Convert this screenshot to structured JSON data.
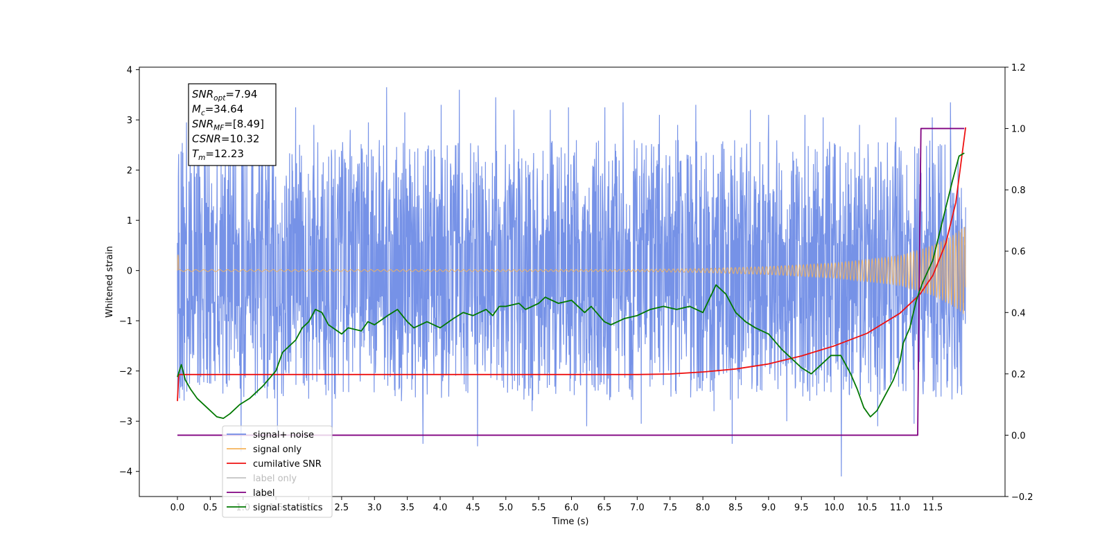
{
  "chart_data": {
    "type": "line",
    "xlabel": "Time (s)",
    "ylabel": "Whitened strain",
    "xlim": [
      -0.58,
      12.6
    ],
    "ylim": [
      -4.5,
      4.05
    ],
    "y2lim": [
      -0.2,
      1.2
    ],
    "x_ticks": [
      "0.0",
      "0.5",
      "1.0",
      "1.5",
      "2.0",
      "2.5",
      "3.0",
      "3.5",
      "4.0",
      "4.5",
      "5.0",
      "5.5",
      "6.0",
      "6.5",
      "7.0",
      "7.5",
      "8.0",
      "8.5",
      "9.0",
      "9.5",
      "10.0",
      "10.5",
      "11.0",
      "11.5"
    ],
    "y_ticks": [
      "4",
      "3",
      "2",
      "1",
      "0",
      "−1",
      "−2",
      "−3",
      "−4"
    ],
    "y2_ticks": [
      "1.2",
      "1.0",
      "0.8",
      "0.6",
      "0.4",
      "0.2",
      "0.0",
      "−0.2"
    ],
    "annotation": [
      {
        "name": "SNR",
        "sub": "opt",
        "value": "=7.94"
      },
      {
        "name": "M",
        "sub": "c",
        "value": "=34.64"
      },
      {
        "name": "SNR",
        "sub": "MF",
        "value": "=[8.49]"
      },
      {
        "name": "CSNR",
        "sub": "",
        "value": "=10.32"
      },
      {
        "name": "T",
        "sub": "m",
        "value": "=12.23"
      }
    ],
    "legend_position": "lower-left",
    "series": [
      {
        "name": "signal+ noise",
        "axis": "left",
        "color": "#6f8ce6",
        "x_range": [
          0,
          12.0
        ],
        "y_range": [
          -4.1,
          3.65
        ],
        "values": [
          2.95,
          3.1,
          -2.45,
          -3.6,
          2.6,
          -3.2,
          3.25,
          2.9,
          -3.35,
          2.8,
          2.95,
          3.65,
          3.15,
          -3.45,
          3.3,
          3.6,
          -3.5,
          3.45,
          3.2,
          -2.8,
          3.2,
          3.25,
          -3.1,
          3.25,
          3.35,
          -3.05,
          3.1,
          2.9,
          3.3,
          -2.8,
          -3.45,
          3.2,
          3.1,
          -3.0,
          3.1,
          3.05,
          -4.1,
          2.9,
          -3.1,
          3.05,
          -3.05,
          3.05,
          3.35
        ]
      },
      {
        "name": "signal only",
        "axis": "left",
        "color": "#f5b35a",
        "x": [
          0.0,
          0.02,
          7.0,
          8.0,
          9.0,
          10.0,
          10.5,
          11.0,
          11.5,
          11.8,
          12.0
        ],
        "amplitude": [
          1.3,
          0.02,
          0.02,
          0.04,
          0.08,
          0.15,
          0.22,
          0.3,
          0.5,
          0.7,
          0.9
        ]
      },
      {
        "name": "cumilative SNR",
        "axis": "left",
        "color": "#ee1111",
        "x": [
          0.0,
          0.02,
          7.0,
          7.5,
          8.0,
          8.5,
          9.0,
          9.5,
          10.0,
          10.5,
          11.0,
          11.3,
          11.5,
          11.7,
          11.85,
          12.0
        ],
        "y": [
          -2.6,
          -2.07,
          -2.07,
          -2.06,
          -2.02,
          -1.96,
          -1.86,
          -1.7,
          -1.5,
          -1.25,
          -0.85,
          -0.48,
          -0.1,
          0.55,
          1.35,
          2.85
        ]
      },
      {
        "name": "label only",
        "axis": "right",
        "color": "#666666",
        "hidden": true,
        "x": [],
        "y": []
      },
      {
        "name": "label",
        "axis": "right",
        "color": "#800080",
        "x": [
          0.0,
          11.27,
          11.32,
          11.98
        ],
        "y": [
          0.0,
          0.0,
          1.0,
          1.0
        ]
      },
      {
        "name": "signal statistics",
        "axis": "right",
        "color": "#007800",
        "x": [
          0.0,
          0.06,
          0.12,
          0.2,
          0.3,
          0.45,
          0.6,
          0.7,
          0.8,
          0.95,
          1.1,
          1.3,
          1.5,
          1.6,
          1.7,
          1.8,
          1.9,
          2.0,
          2.1,
          2.2,
          2.3,
          2.5,
          2.6,
          2.8,
          2.9,
          3.0,
          3.2,
          3.35,
          3.5,
          3.6,
          3.8,
          4.0,
          4.2,
          4.35,
          4.5,
          4.7,
          4.8,
          4.9,
          5.0,
          5.2,
          5.3,
          5.5,
          5.6,
          5.8,
          6.0,
          6.2,
          6.3,
          6.5,
          6.6,
          6.8,
          7.0,
          7.2,
          7.4,
          7.6,
          7.8,
          8.0,
          8.2,
          8.35,
          8.5,
          8.65,
          8.8,
          9.0,
          9.2,
          9.35,
          9.5,
          9.65,
          9.8,
          9.95,
          10.1,
          10.25,
          10.35,
          10.45,
          10.55,
          10.65,
          10.75,
          10.9,
          11.0,
          11.05,
          11.15,
          11.25,
          11.35,
          11.5,
          11.65,
          11.8,
          11.9,
          11.98
        ],
        "y": [
          0.19,
          0.23,
          0.18,
          0.15,
          0.12,
          0.09,
          0.06,
          0.055,
          0.07,
          0.1,
          0.12,
          0.16,
          0.21,
          0.27,
          0.29,
          0.31,
          0.35,
          0.37,
          0.41,
          0.4,
          0.36,
          0.33,
          0.35,
          0.34,
          0.37,
          0.36,
          0.39,
          0.41,
          0.37,
          0.35,
          0.37,
          0.35,
          0.38,
          0.4,
          0.39,
          0.41,
          0.39,
          0.42,
          0.42,
          0.43,
          0.41,
          0.43,
          0.45,
          0.43,
          0.44,
          0.4,
          0.42,
          0.37,
          0.36,
          0.38,
          0.39,
          0.41,
          0.42,
          0.41,
          0.42,
          0.4,
          0.49,
          0.46,
          0.4,
          0.37,
          0.35,
          0.33,
          0.28,
          0.25,
          0.22,
          0.2,
          0.23,
          0.26,
          0.26,
          0.2,
          0.15,
          0.09,
          0.06,
          0.08,
          0.12,
          0.18,
          0.24,
          0.3,
          0.35,
          0.44,
          0.5,
          0.57,
          0.7,
          0.83,
          0.91,
          0.92
        ]
      }
    ]
  }
}
